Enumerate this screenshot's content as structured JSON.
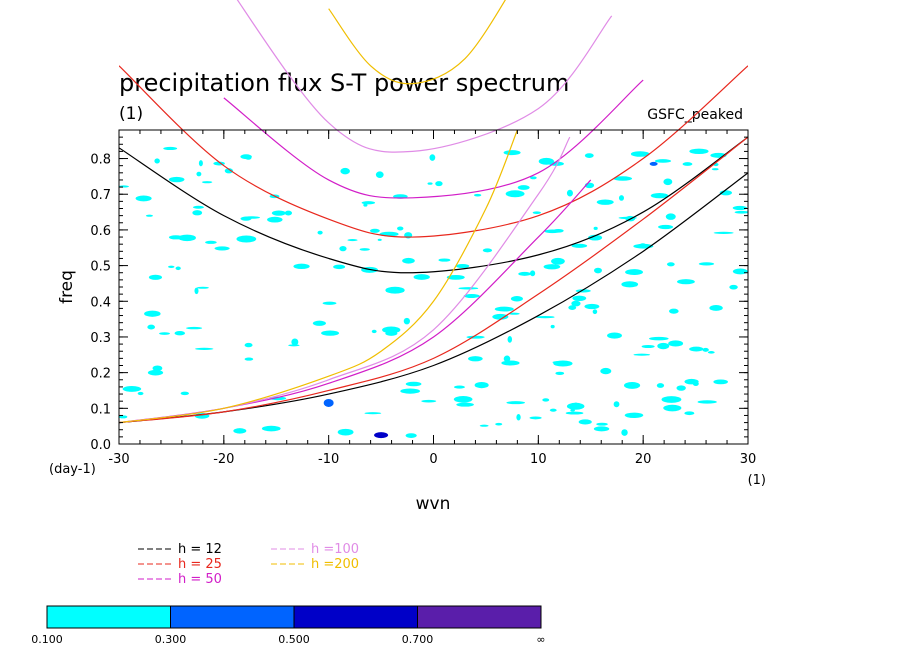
{
  "chart_data": {
    "type": "line",
    "title": "precipitation flux S-T power spectrum",
    "title_unit": "(1)",
    "dataset_label": "GSFC_peaked",
    "xlabel": "wvn",
    "x_unit_left": "(day-1)",
    "x_unit_right": "(1)",
    "ylabel": "freq",
    "xlim": [
      -30,
      30
    ],
    "ylim": [
      0,
      0.88
    ],
    "xticks": [
      -30,
      -20,
      -10,
      0,
      10,
      20,
      30
    ],
    "yticks": [
      0.0,
      0.1,
      0.2,
      0.3,
      0.4,
      0.5,
      0.6,
      0.7,
      0.8
    ],
    "ytick_labels": [
      "0.0",
      "0.1",
      "0.2",
      "0.3",
      "0.4",
      "0.5",
      "0.6",
      "0.7",
      "0.8"
    ],
    "grid": false,
    "legend_position": "bottom-left",
    "series": [
      {
        "name": "h = 12",
        "color": "#000000",
        "inertio_gravity": {
          "x": [
            -30,
            -20,
            -10,
            -2,
            10,
            20,
            30
          ],
          "y": [
            0.83,
            0.64,
            0.52,
            0.48,
            0.53,
            0.65,
            0.86
          ]
        },
        "kelvin": {
          "x": [
            -30,
            -20,
            -10,
            0,
            10,
            20,
            30
          ],
          "y": [
            0.06,
            0.09,
            0.14,
            0.22,
            0.36,
            0.54,
            0.76
          ]
        }
      },
      {
        "name": "h = 25",
        "color": "#e8281e",
        "inertio_gravity": {
          "x": [
            -30,
            -20,
            -10,
            -2,
            10,
            20,
            30
          ],
          "y": [
            1.06,
            0.78,
            0.63,
            0.58,
            0.64,
            0.8,
            1.06
          ]
        },
        "kelvin": {
          "x": [
            -30,
            -20,
            -10,
            0,
            10,
            20,
            30
          ],
          "y": [
            0.06,
            0.09,
            0.15,
            0.24,
            0.42,
            0.63,
            0.86
          ]
        }
      },
      {
        "name": "h = 50",
        "color": "#d21ec8",
        "inertio_gravity": {
          "x": [
            -20,
            -10,
            -2,
            10,
            20
          ],
          "y": [
            0.97,
            0.74,
            0.69,
            0.76,
            1.02
          ]
        },
        "kelvin": {
          "x": [
            -30,
            -20,
            -10,
            0,
            10,
            15
          ],
          "y": [
            0.06,
            0.1,
            0.17,
            0.3,
            0.58,
            0.74
          ]
        }
      },
      {
        "name": "h =100",
        "color": "#e08ce6",
        "inertio_gravity": {
          "x": [
            -20,
            -10,
            -2,
            10,
            17
          ],
          "y": [
            1.3,
            0.9,
            0.82,
            0.94,
            1.2
          ]
        },
        "kelvin": {
          "x": [
            -30,
            -20,
            -10,
            0,
            10,
            13
          ],
          "y": [
            0.06,
            0.1,
            0.18,
            0.32,
            0.7,
            0.86
          ]
        }
      },
      {
        "name": "h =200",
        "color": "#f0be00",
        "inertio_gravity": {
          "x": [
            -10,
            -6,
            -2,
            3,
            8
          ],
          "y": [
            1.22,
            1.06,
            1.01,
            1.08,
            1.3
          ]
        },
        "kelvin": {
          "x": [
            -30,
            -20,
            -10,
            -5,
            0,
            5,
            8
          ],
          "y": [
            0.06,
            0.1,
            0.19,
            0.26,
            0.4,
            0.66,
            0.88
          ]
        }
      }
    ],
    "colorbar": {
      "levels": [
        "0.100",
        "0.300",
        "0.500",
        "0.700",
        "∞"
      ],
      "colors": [
        "#00ffff",
        "#0064ff",
        "#0000c8",
        "#5a1eaa"
      ]
    }
  }
}
